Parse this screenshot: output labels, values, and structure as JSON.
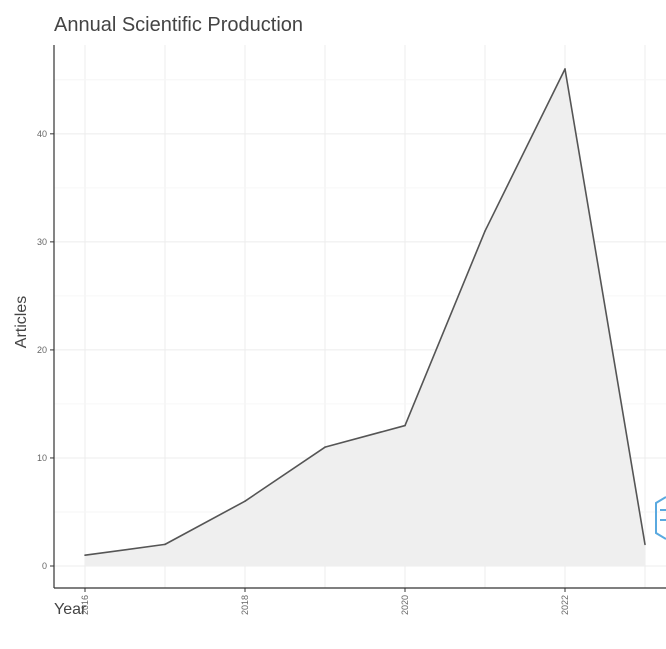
{
  "chart_data": {
    "type": "area",
    "title": "Annual Scientific Production",
    "xlabel": "Year",
    "ylabel": "Articles",
    "x": [
      2016,
      2017,
      2018,
      2019,
      2020,
      2021,
      2022,
      2023
    ],
    "series": [
      {
        "values": [
          1,
          2,
          6,
          11,
          13,
          31,
          46,
          2
        ]
      }
    ],
    "x_ticks": [
      "2016",
      "2018",
      "2020",
      "2022"
    ],
    "y_ticks": [
      "0",
      "10",
      "20",
      "30",
      "40"
    ],
    "xlim": [
      2016,
      2023
    ],
    "ylim": [
      0,
      46
    ],
    "grid": true,
    "line_color": "#555555",
    "fill_color": "#efefef"
  },
  "watermark": {
    "icon": "bibliometrix-logo-icon",
    "color": "#5aa9df"
  }
}
